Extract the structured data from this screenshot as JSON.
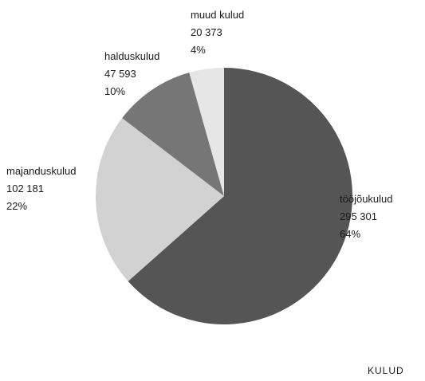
{
  "caption": "KULUD",
  "chart_data": {
    "type": "pie",
    "title": "",
    "slices": [
      {
        "label": "tööjõukulud",
        "value": 295301,
        "value_text": "295 301",
        "percent_text": "64%",
        "color": "#555555"
      },
      {
        "label": "majanduskulud",
        "value": 102181,
        "value_text": "102 181",
        "percent_text": "22%",
        "color": "#d2d2d2"
      },
      {
        "label": "halduskulud",
        "value": 47593,
        "value_text": "47 593",
        "percent_text": "10%",
        "color": "#767676"
      },
      {
        "label": "muud kulud",
        "value": 20373,
        "value_text": "20 373",
        "percent_text": "4%",
        "color": "#e6e6e6"
      }
    ],
    "start": "12 o'clock",
    "direction": "clockwise",
    "legend": "none (labels beside slices)"
  }
}
